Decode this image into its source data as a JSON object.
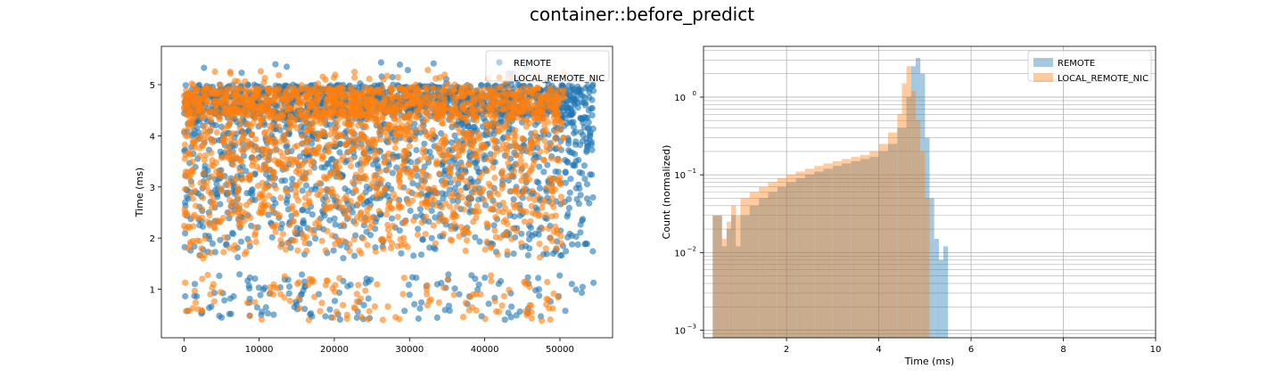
{
  "figure": {
    "suptitle": "container::before_predict"
  },
  "colors": {
    "remote": "#1f77b4",
    "local_remote_nic": "#ff7f0e"
  },
  "chart_data": [
    {
      "type": "scatter",
      "title": "",
      "xlabel": "",
      "ylabel": "Time (ms)",
      "xlim": [
        -3000,
        57000
      ],
      "ylim": [
        0.05,
        5.75
      ],
      "xticks": [
        0,
        10000,
        20000,
        30000,
        40000,
        50000
      ],
      "yticks": [
        1,
        2,
        3,
        4,
        5
      ],
      "grid": false,
      "legend": "top-right",
      "series": [
        {
          "name": "REMOTE",
          "color": "#1f77b4",
          "alpha": 0.6,
          "x_range": [
            0,
            54500
          ],
          "dense_band": [
            4.4,
            5.0
          ],
          "spread_range": [
            0.4,
            5.45
          ]
        },
        {
          "name": "LOCAL_REMOTE_NIC",
          "color": "#ff7f0e",
          "alpha": 0.6,
          "x_range": [
            0,
            50500
          ],
          "dense_band": [
            4.35,
            4.95
          ],
          "spread_range": [
            0.38,
            5.3
          ]
        }
      ]
    },
    {
      "type": "bar",
      "subtype": "histogram",
      "title": "",
      "xlabel": "Time (ms)",
      "ylabel": "Count (normalized)",
      "xlim": [
        0.2,
        10
      ],
      "ylim": [
        0.0008,
        4.5
      ],
      "yscale": "log",
      "xticks": [
        2,
        4,
        6,
        8,
        10
      ],
      "yticks": [
        0.001,
        0.01,
        0.1,
        1
      ],
      "ytick_labels": [
        "10",
        "10",
        "10",
        "10"
      ],
      "ytick_exponents": [
        "−3",
        "−2",
        "−1",
        "0"
      ],
      "grid": true,
      "legend": "top-right",
      "series": [
        {
          "name": "REMOTE",
          "color": "#1f77b4",
          "alpha": 0.4,
          "bins": [
            [
              0.4,
              0.03
            ],
            [
              0.5,
              0.03
            ],
            [
              0.6,
              0.012
            ],
            [
              0.7,
              0.02
            ],
            [
              0.8,
              0.03
            ],
            [
              0.9,
              0.012
            ],
            [
              1.0,
              0.03
            ],
            [
              1.2,
              0.04
            ],
            [
              1.4,
              0.05
            ],
            [
              1.6,
              0.06
            ],
            [
              1.8,
              0.07
            ],
            [
              2.0,
              0.08
            ],
            [
              2.2,
              0.09
            ],
            [
              2.4,
              0.1
            ],
            [
              2.6,
              0.11
            ],
            [
              2.8,
              0.12
            ],
            [
              3.0,
              0.13
            ],
            [
              3.2,
              0.14
            ],
            [
              3.4,
              0.15
            ],
            [
              3.6,
              0.16
            ],
            [
              3.8,
              0.17
            ],
            [
              4.0,
              0.2
            ],
            [
              4.2,
              0.25
            ],
            [
              4.4,
              0.4
            ],
            [
              4.6,
              1.0
            ],
            [
              4.7,
              2.5
            ],
            [
              4.8,
              3.2
            ],
            [
              4.9,
              2.0
            ],
            [
              5.0,
              0.3
            ],
            [
              5.1,
              0.05
            ],
            [
              5.2,
              0.015
            ],
            [
              5.3,
              0.008
            ],
            [
              5.4,
              0.012
            ]
          ]
        },
        {
          "name": "LOCAL_REMOTE_NIC",
          "color": "#ff7f0e",
          "alpha": 0.4,
          "bins": [
            [
              0.4,
              0.03
            ],
            [
              0.5,
              0.03
            ],
            [
              0.6,
              0.015
            ],
            [
              0.7,
              0.025
            ],
            [
              0.8,
              0.04
            ],
            [
              0.9,
              0.03
            ],
            [
              1.0,
              0.05
            ],
            [
              1.2,
              0.06
            ],
            [
              1.4,
              0.07
            ],
            [
              1.6,
              0.08
            ],
            [
              1.8,
              0.09
            ],
            [
              2.0,
              0.1
            ],
            [
              2.2,
              0.11
            ],
            [
              2.4,
              0.12
            ],
            [
              2.6,
              0.13
            ],
            [
              2.8,
              0.14
            ],
            [
              3.0,
              0.15
            ],
            [
              3.2,
              0.16
            ],
            [
              3.4,
              0.17
            ],
            [
              3.6,
              0.18
            ],
            [
              3.8,
              0.2
            ],
            [
              4.0,
              0.25
            ],
            [
              4.2,
              0.35
            ],
            [
              4.4,
              0.6
            ],
            [
              4.5,
              1.5
            ],
            [
              4.6,
              2.5
            ],
            [
              4.7,
              1.2
            ],
            [
              4.8,
              0.5
            ],
            [
              4.9,
              0.2
            ],
            [
              5.0,
              0.05
            ]
          ]
        }
      ]
    }
  ]
}
